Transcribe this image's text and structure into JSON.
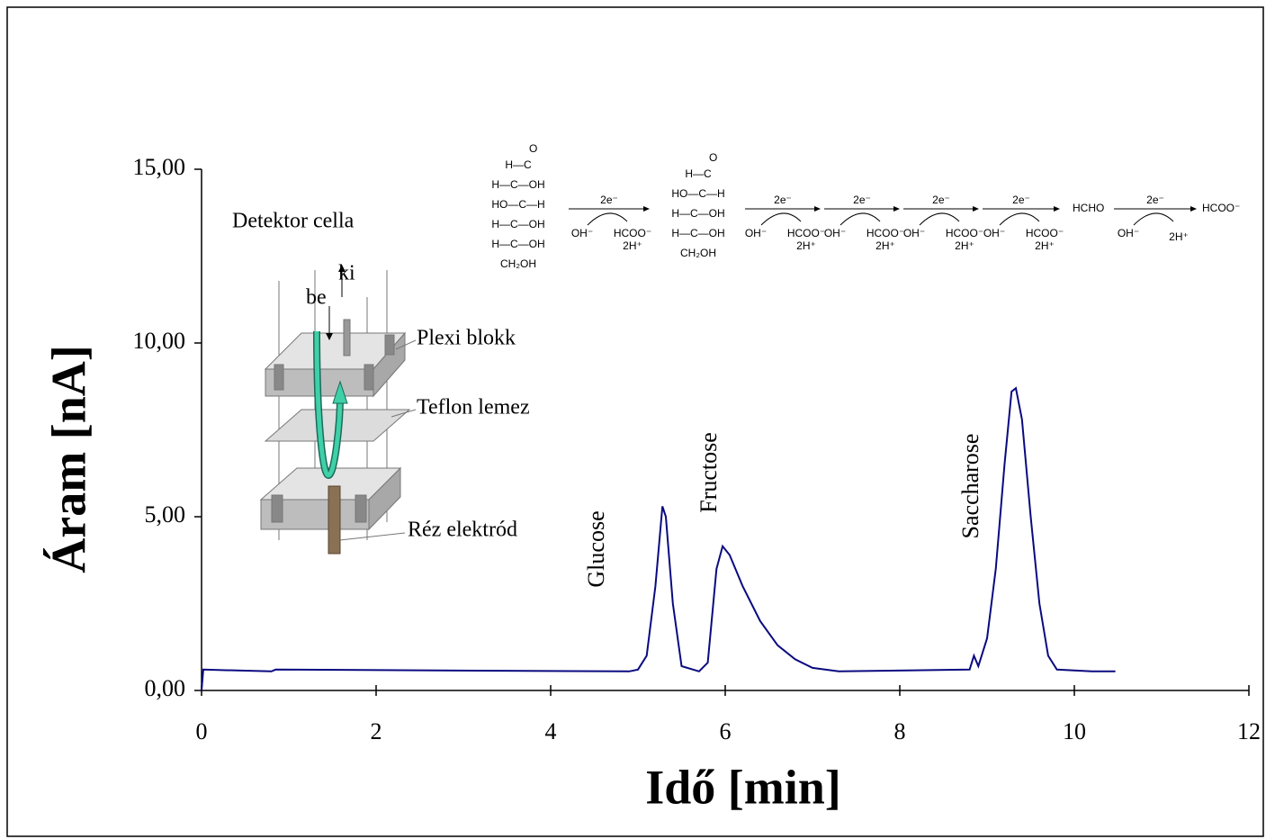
{
  "chart_data": {
    "type": "line",
    "x_label": "Idő [min]",
    "y_label": "Áram [nA]",
    "x": [
      0,
      0.02,
      0.8,
      0.85,
      4.9,
      5.0,
      5.1,
      5.2,
      5.28,
      5.32,
      5.4,
      5.5,
      5.7,
      5.8,
      5.9,
      5.97,
      6.05,
      6.2,
      6.4,
      6.6,
      6.8,
      7.0,
      7.3,
      8.8,
      8.85,
      8.9,
      9.0,
      9.1,
      9.2,
      9.28,
      9.33,
      9.4,
      9.5,
      9.6,
      9.7,
      9.8,
      10.2,
      10.47
    ],
    "values": [
      0,
      0.6,
      0.55,
      0.6,
      0.55,
      0.6,
      1.0,
      3.0,
      5.3,
      5.0,
      2.5,
      0.7,
      0.55,
      0.8,
      3.5,
      4.15,
      3.9,
      3.0,
      2.0,
      1.3,
      0.9,
      0.65,
      0.55,
      0.6,
      1.0,
      0.7,
      1.5,
      3.5,
      6.5,
      8.6,
      8.7,
      7.8,
      5.0,
      2.5,
      1.0,
      0.6,
      0.55,
      0.55
    ],
    "color": "#0a0a80",
    "xlim": [
      0,
      12
    ],
    "xticks": [
      0,
      2,
      4,
      6,
      8,
      10,
      12
    ],
    "ylim": [
      0,
      15
    ],
    "yticks": [
      {
        "value": 0,
        "label": "0,00"
      },
      {
        "value": 5,
        "label": "5,00"
      },
      {
        "value": 10,
        "label": "10,00"
      },
      {
        "value": 15,
        "label": "15,00"
      }
    ],
    "annotations": [
      "Glucose",
      "Fructose",
      "Saccharose"
    ]
  },
  "inset": {
    "title": "Detektor cella",
    "inlet": "be",
    "outlet": "ki",
    "labels": [
      "Plexi blokk",
      "Teflon lemez",
      "Réz elektród"
    ]
  },
  "scheme": {
    "molecule_1": [
      "O",
      "H—C",
      "H—C—OH",
      "HO—C—H",
      "H—C—OH",
      "H—C—OH",
      "CH₂OH"
    ],
    "molecule_2": [
      "O",
      "H—C",
      "HO—C—H",
      "H—C—OH",
      "H—C—OH",
      "CH₂OH"
    ],
    "steps": [
      {
        "electrons": "2e⁻",
        "reagent": "OH⁻",
        "products": [
          "HCOO⁻",
          "2H⁺"
        ]
      },
      {
        "electrons": "2e⁻",
        "reagent": "OH⁻",
        "products": [
          "HCOO⁻",
          "2H⁺"
        ]
      },
      {
        "electrons": "2e⁻",
        "reagent": "OH⁻",
        "products": [
          "HCOO⁻",
          "2H⁺"
        ]
      },
      {
        "electrons": "2e⁻",
        "reagent": "OH⁻",
        "products": [
          "HCOO⁻",
          "2H⁺"
        ]
      },
      {
        "electrons": "2e⁻",
        "reagent": "OH⁻",
        "products": [
          "HCOO⁻",
          "2H⁺"
        ]
      },
      {
        "electrons": "2e⁻",
        "reagent": "OH⁻",
        "products": [
          "2H⁺"
        ]
      }
    ],
    "intermediate": "HCHO",
    "final": "HCOO⁻"
  }
}
